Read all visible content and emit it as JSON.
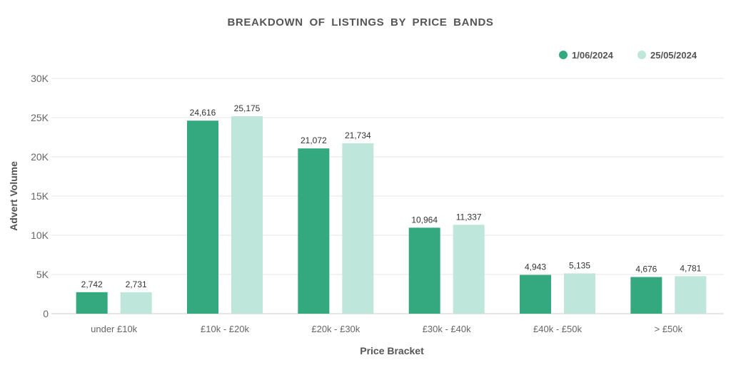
{
  "chart_data": {
    "type": "bar",
    "title": "BREAKDOWN OF LISTINGS BY PRICE BANDS",
    "xlabel": "Price Bracket",
    "ylabel": "Advert Volume",
    "ylim": [
      0,
      30000
    ],
    "yticks": [
      0,
      5000,
      10000,
      15000,
      20000,
      25000,
      30000
    ],
    "ytick_labels": [
      "0",
      "5K",
      "10K",
      "15K",
      "20K",
      "25K",
      "30K"
    ],
    "grid": true,
    "legend_position": "top-right",
    "categories": [
      "under £10k",
      "£10k - £20k",
      "£20k - £30k",
      "£30k - £40k",
      "£40k - £50k",
      "> £50k"
    ],
    "series": [
      {
        "name": "1/06/2024",
        "color": "#34a87f",
        "values": [
          2742,
          24616,
          21072,
          10964,
          4943,
          4676
        ],
        "labels": [
          "2,742",
          "24,616",
          "21,072",
          "10,964",
          "4,943",
          "4,676"
        ]
      },
      {
        "name": "25/05/2024",
        "color": "#bfe6da",
        "values": [
          2731,
          25175,
          21734,
          11337,
          5135,
          4781
        ],
        "labels": [
          "2,731",
          "25,175",
          "21,734",
          "11,337",
          "5,135",
          "4,781"
        ]
      }
    ]
  }
}
